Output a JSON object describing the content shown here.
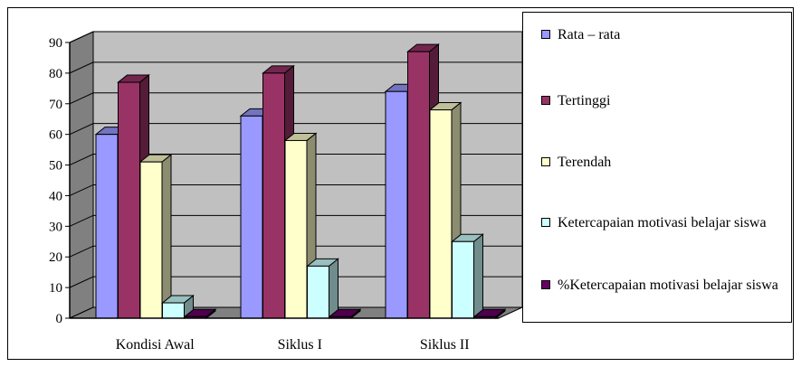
{
  "chart_data": {
    "type": "bar",
    "categories": [
      "Kondisi Awal",
      "Siklus I",
      "Siklus II"
    ],
    "series": [
      {
        "name": "Rata – rata",
        "values": [
          60,
          66,
          74
        ],
        "color": "#9999ff"
      },
      {
        "name": "Tertinggi",
        "values": [
          77,
          80,
          87
        ],
        "color": "#993366"
      },
      {
        "name": "Terendah",
        "values": [
          51,
          58,
          68
        ],
        "color": "#ffffcc"
      },
      {
        "name": "Ketercapaian motivasi belajar siswa",
        "values": [
          5,
          17,
          25
        ],
        "color": "#ccffff"
      },
      {
        "name": "%Ketercapaian motivasi belajar siswa",
        "values": [
          0.5,
          0.5,
          0.5
        ],
        "color": "#660066"
      }
    ],
    "yticks": [
      0,
      10,
      20,
      30,
      40,
      50,
      60,
      70,
      80,
      90
    ],
    "ylim": [
      0,
      90
    ],
    "grid": true,
    "legend_position": "right",
    "wall_color": "#c0c0c0",
    "floor_color": "#808080"
  }
}
